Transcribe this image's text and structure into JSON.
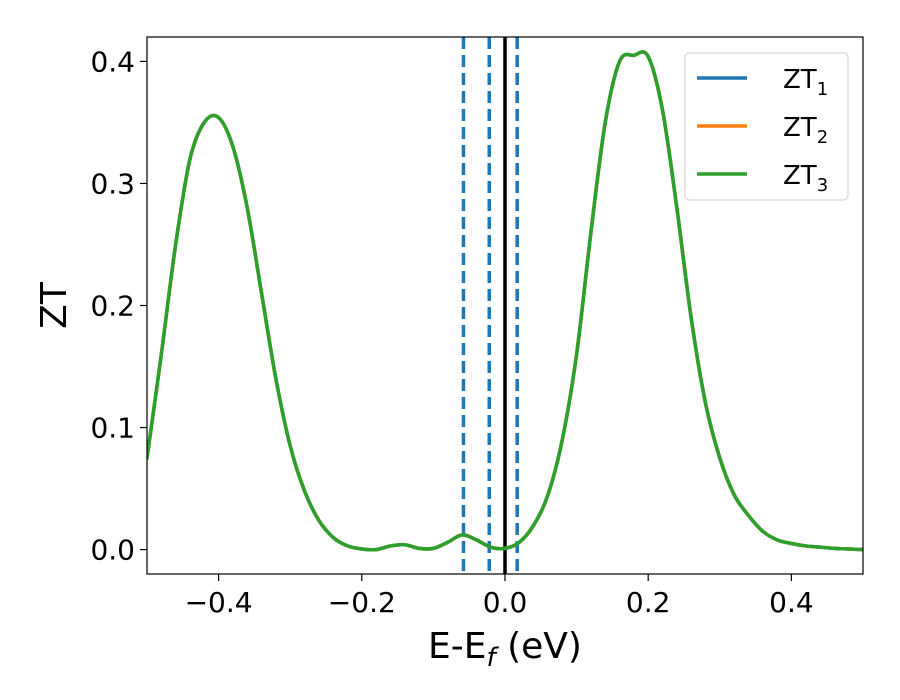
{
  "chart_data": {
    "type": "line",
    "xlabel": "E-E_f (eV)",
    "ylabel": "ZT",
    "xlim": [
      -0.5,
      0.5
    ],
    "ylim": [
      -0.02,
      0.42
    ],
    "grid": false,
    "legend_position": "top-right",
    "x_ticks": [
      -0.4,
      -0.2,
      0.0,
      0.2,
      0.4
    ],
    "x_tick_labels": [
      "−0.4",
      "−0.2",
      "0.0",
      "0.2",
      "0.4"
    ],
    "y_ticks": [
      0.0,
      0.1,
      0.2,
      0.3,
      0.4
    ],
    "y_tick_labels": [
      "0.0",
      "0.1",
      "0.2",
      "0.3",
      "0.4"
    ],
    "series": [
      {
        "name": "ZT1",
        "label_main": "ZT",
        "label_sub": "1",
        "color": "#1f77b4",
        "x": [
          -0.5,
          -0.48,
          -0.46,
          -0.44,
          -0.42,
          -0.4,
          -0.38,
          -0.36,
          -0.34,
          -0.32,
          -0.3,
          -0.28,
          -0.26,
          -0.24,
          -0.22,
          -0.2,
          -0.18,
          -0.16,
          -0.14,
          -0.12,
          -0.1,
          -0.08,
          -0.06,
          -0.04,
          -0.02,
          0.0,
          0.02,
          0.04,
          0.06,
          0.08,
          0.1,
          0.12,
          0.14,
          0.16,
          0.18,
          0.2,
          0.22,
          0.24,
          0.26,
          0.28,
          0.3,
          0.32,
          0.34,
          0.36,
          0.38,
          0.4,
          0.42,
          0.44,
          0.46,
          0.48,
          0.5
        ],
        "y": [
          0.075,
          0.16,
          0.25,
          0.32,
          0.35,
          0.354,
          0.33,
          0.28,
          0.21,
          0.14,
          0.085,
          0.048,
          0.024,
          0.01,
          0.003,
          0.0005,
          0.0,
          0.003,
          0.004,
          0.001,
          0.001,
          0.006,
          0.012,
          0.008,
          0.002,
          0.001,
          0.006,
          0.02,
          0.045,
          0.09,
          0.16,
          0.26,
          0.35,
          0.4,
          0.405,
          0.404,
          0.36,
          0.28,
          0.19,
          0.12,
          0.075,
          0.045,
          0.028,
          0.015,
          0.008,
          0.005,
          0.003,
          0.002,
          0.001,
          0.0005,
          0.0
        ]
      },
      {
        "name": "ZT2",
        "label_main": "ZT",
        "label_sub": "2",
        "color": "#ff7f0e",
        "x": [
          -0.5,
          -0.48,
          -0.46,
          -0.44,
          -0.42,
          -0.4,
          -0.38,
          -0.36,
          -0.34,
          -0.32,
          -0.3,
          -0.28,
          -0.26,
          -0.24,
          -0.22,
          -0.2,
          -0.18,
          -0.16,
          -0.14,
          -0.12,
          -0.1,
          -0.08,
          -0.06,
          -0.04,
          -0.02,
          0.0,
          0.02,
          0.04,
          0.06,
          0.08,
          0.1,
          0.12,
          0.14,
          0.16,
          0.18,
          0.2,
          0.22,
          0.24,
          0.26,
          0.28,
          0.3,
          0.32,
          0.34,
          0.36,
          0.38,
          0.4,
          0.42,
          0.44,
          0.46,
          0.48,
          0.5
        ],
        "y": [
          0.075,
          0.16,
          0.25,
          0.32,
          0.35,
          0.354,
          0.33,
          0.28,
          0.21,
          0.14,
          0.085,
          0.048,
          0.024,
          0.01,
          0.003,
          0.0005,
          0.0,
          0.003,
          0.004,
          0.001,
          0.001,
          0.006,
          0.012,
          0.008,
          0.002,
          0.001,
          0.006,
          0.02,
          0.045,
          0.09,
          0.16,
          0.26,
          0.35,
          0.4,
          0.405,
          0.404,
          0.36,
          0.28,
          0.19,
          0.12,
          0.075,
          0.045,
          0.028,
          0.015,
          0.008,
          0.005,
          0.003,
          0.002,
          0.001,
          0.0005,
          0.0
        ]
      },
      {
        "name": "ZT3",
        "label_main": "ZT",
        "label_sub": "3",
        "color": "#2ca02c",
        "x": [
          -0.5,
          -0.48,
          -0.46,
          -0.44,
          -0.42,
          -0.4,
          -0.38,
          -0.36,
          -0.34,
          -0.32,
          -0.3,
          -0.28,
          -0.26,
          -0.24,
          -0.22,
          -0.2,
          -0.18,
          -0.16,
          -0.14,
          -0.12,
          -0.1,
          -0.08,
          -0.06,
          -0.04,
          -0.02,
          0.0,
          0.02,
          0.04,
          0.06,
          0.08,
          0.1,
          0.12,
          0.14,
          0.16,
          0.18,
          0.2,
          0.22,
          0.24,
          0.26,
          0.28,
          0.3,
          0.32,
          0.34,
          0.36,
          0.38,
          0.4,
          0.42,
          0.44,
          0.46,
          0.48,
          0.5
        ],
        "y": [
          0.075,
          0.16,
          0.25,
          0.32,
          0.35,
          0.354,
          0.33,
          0.28,
          0.21,
          0.14,
          0.085,
          0.048,
          0.024,
          0.01,
          0.003,
          0.0005,
          0.0,
          0.003,
          0.004,
          0.001,
          0.001,
          0.006,
          0.012,
          0.008,
          0.002,
          0.001,
          0.006,
          0.02,
          0.045,
          0.09,
          0.16,
          0.26,
          0.35,
          0.4,
          0.405,
          0.404,
          0.36,
          0.28,
          0.19,
          0.12,
          0.075,
          0.045,
          0.028,
          0.015,
          0.008,
          0.005,
          0.003,
          0.002,
          0.001,
          0.0005,
          0.0
        ]
      }
    ],
    "vertical_lines": [
      {
        "x": -0.058,
        "style": "dashed",
        "color": "#1f77b4"
      },
      {
        "x": -0.022,
        "style": "dashed",
        "color": "#1f77b4"
      },
      {
        "x": 0.0,
        "style": "solid",
        "color": "#000000"
      },
      {
        "x": 0.017,
        "style": "dashed",
        "color": "#1f77b4"
      }
    ]
  }
}
